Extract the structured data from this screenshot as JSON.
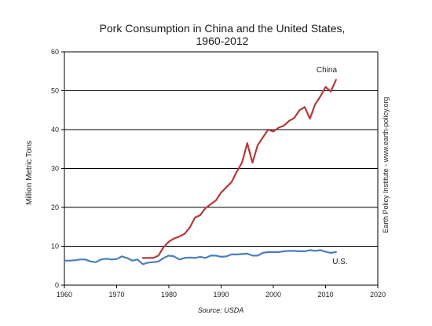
{
  "chart_data": {
    "type": "line",
    "title_lines": [
      "Pork Consumption in China and the United States,",
      "1960-2012"
    ],
    "ylabel": "Million Metric Tons",
    "xlabel": "",
    "xlim": [
      1960,
      2020
    ],
    "ylim": [
      0,
      60
    ],
    "x_ticks": [
      1960,
      1970,
      1980,
      1990,
      2000,
      2010,
      2020
    ],
    "y_ticks": [
      0,
      10,
      20,
      30,
      40,
      50,
      60
    ],
    "grid": "horizontal",
    "source": "Source: USDA",
    "credit": "Earth Policy Institute - www.earth-policy.org",
    "series": [
      {
        "name": "China",
        "color": "#b5393a",
        "x": [
          1975,
          1976,
          1977,
          1978,
          1979,
          1980,
          1981,
          1982,
          1983,
          1984,
          1985,
          1986,
          1987,
          1988,
          1989,
          1990,
          1991,
          1992,
          1993,
          1994,
          1995,
          1996,
          1997,
          1998,
          1999,
          2000,
          2001,
          2002,
          2003,
          2004,
          2005,
          2006,
          2007,
          2008,
          2009,
          2010,
          2011,
          2012
        ],
        "values": [
          7.0,
          7.0,
          7.0,
          7.6,
          9.8,
          11.2,
          12.0,
          12.5,
          13.2,
          14.8,
          17.4,
          18.0,
          19.8,
          20.8,
          21.8,
          23.8,
          25.2,
          26.5,
          29.2,
          31.5,
          36.5,
          31.5,
          36.0,
          38.0,
          40.0,
          39.5,
          40.5,
          41.0,
          42.2,
          43.0,
          45.0,
          45.8,
          42.8,
          46.5,
          48.5,
          51.0,
          49.8,
          52.8
        ]
      },
      {
        "name": "U.S.",
        "color": "#4a7ec0",
        "x": [
          1960,
          1961,
          1962,
          1963,
          1964,
          1965,
          1966,
          1967,
          1968,
          1969,
          1970,
          1971,
          1972,
          1973,
          1974,
          1975,
          1976,
          1977,
          1978,
          1979,
          1980,
          1981,
          1982,
          1983,
          1984,
          1985,
          1986,
          1987,
          1988,
          1989,
          1990,
          1991,
          1992,
          1993,
          1994,
          1995,
          1996,
          1997,
          1998,
          1999,
          2000,
          2001,
          2002,
          2003,
          2004,
          2005,
          2006,
          2007,
          2008,
          2009,
          2010,
          2011,
          2012
        ],
        "values": [
          6.3,
          6.3,
          6.4,
          6.6,
          6.6,
          6.1,
          5.9,
          6.6,
          6.8,
          6.6,
          6.7,
          7.4,
          7.0,
          6.3,
          6.6,
          5.4,
          5.8,
          5.9,
          6.1,
          7.0,
          7.6,
          7.4,
          6.6,
          7.0,
          7.1,
          7.0,
          7.3,
          7.0,
          7.6,
          7.6,
          7.3,
          7.4,
          7.9,
          7.9,
          8.0,
          8.1,
          7.6,
          7.6,
          8.3,
          8.5,
          8.5,
          8.5,
          8.7,
          8.8,
          8.8,
          8.7,
          8.7,
          9.0,
          8.8,
          9.0,
          8.6,
          8.3,
          8.5
        ]
      }
    ]
  }
}
